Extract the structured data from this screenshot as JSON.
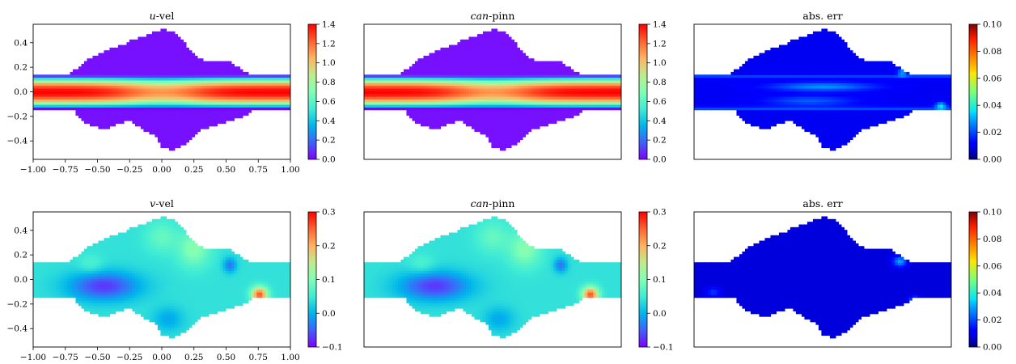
{
  "chart_data": [
    {
      "type": "heatmap",
      "title_italic": "u",
      "title_rest": "-vel",
      "xlim": [
        -1.0,
        1.0
      ],
      "ylim": [
        -0.55,
        0.55
      ],
      "xticks": [
        "−1.00",
        "−0.75",
        "−0.50",
        "−0.25",
        "0.00",
        "0.25",
        "0.50",
        "0.75",
        "1.00"
      ],
      "yticks": [
        "−0.4",
        "−0.2",
        "0.0",
        "0.2",
        "0.4"
      ],
      "colorbar": {
        "range": [
          0.0,
          1.4
        ],
        "ticks": [
          "0.0",
          "0.2",
          "0.4",
          "0.6",
          "0.8",
          "1.0",
          "1.2",
          "1.4"
        ],
        "colormap": "rainbow"
      },
      "field": "u-velocity"
    },
    {
      "type": "heatmap",
      "title_italic": "can",
      "title_rest": "-pinn",
      "xlim": [
        -1.0,
        1.0
      ],
      "ylim": [
        -0.55,
        0.55
      ],
      "colorbar": {
        "range": [
          0.0,
          1.4
        ],
        "ticks": [
          "0.0",
          "0.2",
          "0.4",
          "0.6",
          "0.8",
          "1.0",
          "1.2",
          "1.4"
        ],
        "colormap": "rainbow"
      },
      "field": "u-velocity prediction"
    },
    {
      "type": "heatmap",
      "title_italic": "",
      "title_rest": "abs. err",
      "xlim": [
        -1.0,
        1.0
      ],
      "ylim": [
        -0.55,
        0.55
      ],
      "colorbar": {
        "range": [
          0.0,
          0.1
        ],
        "ticks": [
          "0.00",
          "0.02",
          "0.04",
          "0.06",
          "0.08",
          "0.10"
        ],
        "colormap": "jet"
      },
      "field": "u absolute error"
    },
    {
      "type": "heatmap",
      "title_italic": "v",
      "title_rest": "-vel",
      "xlim": [
        -1.0,
        1.0
      ],
      "ylim": [
        -0.55,
        0.55
      ],
      "xticks": [
        "−1.00",
        "−0.75",
        "−0.50",
        "−0.25",
        "0.00",
        "0.25",
        "0.50",
        "0.75",
        "1.00"
      ],
      "yticks": [
        "−0.4",
        "−0.2",
        "0.0",
        "0.2",
        "0.4"
      ],
      "colorbar": {
        "range": [
          -0.1,
          0.3
        ],
        "ticks": [
          "−0.1",
          "0.0",
          "0.1",
          "0.2",
          "0.3"
        ],
        "colormap": "rainbow"
      },
      "field": "v-velocity"
    },
    {
      "type": "heatmap",
      "title_italic": "can",
      "title_rest": "-pinn",
      "xlim": [
        -1.0,
        1.0
      ],
      "ylim": [
        -0.55,
        0.55
      ],
      "colorbar": {
        "range": [
          -0.1,
          0.3
        ],
        "ticks": [
          "−0.1",
          "0.0",
          "0.1",
          "0.2",
          "0.3"
        ],
        "colormap": "rainbow"
      },
      "field": "v-velocity prediction"
    },
    {
      "type": "heatmap",
      "title_italic": "",
      "title_rest": "abs. err",
      "xlim": [
        -1.0,
        1.0
      ],
      "ylim": [
        -0.55,
        0.55
      ],
      "colorbar": {
        "range": [
          0.0,
          0.1
        ],
        "ticks": [
          "0.00",
          "0.02",
          "0.04",
          "0.06",
          "0.08",
          "0.10"
        ],
        "colormap": "jet"
      },
      "field": "v absolute error"
    }
  ],
  "domain": {
    "channel_halfwidth": 0.135,
    "top_profile_x": [
      -0.73,
      -0.65,
      -0.55,
      -0.45,
      -0.38,
      -0.3,
      -0.22,
      -0.15,
      -0.08,
      0.0,
      0.08,
      0.16,
      0.22,
      0.3,
      0.4,
      0.5,
      0.58,
      0.65,
      0.69
    ],
    "top_profile_y": [
      0.135,
      0.2,
      0.28,
      0.33,
      0.36,
      0.38,
      0.43,
      0.45,
      0.48,
      0.51,
      0.49,
      0.42,
      0.34,
      0.27,
      0.24,
      0.26,
      0.21,
      0.16,
      0.135
    ],
    "bottom_profile_x": [
      -0.7,
      -0.6,
      -0.45,
      -0.35,
      -0.25,
      -0.15,
      -0.05,
      0.0,
      0.1,
      0.2,
      0.3,
      0.4,
      0.5,
      0.58,
      0.66,
      0.71
    ],
    "bottom_profile_y": [
      -0.135,
      -0.25,
      -0.31,
      -0.26,
      -0.23,
      -0.3,
      -0.36,
      -0.46,
      -0.47,
      -0.41,
      -0.3,
      -0.28,
      -0.24,
      -0.22,
      -0.18,
      -0.135
    ]
  }
}
